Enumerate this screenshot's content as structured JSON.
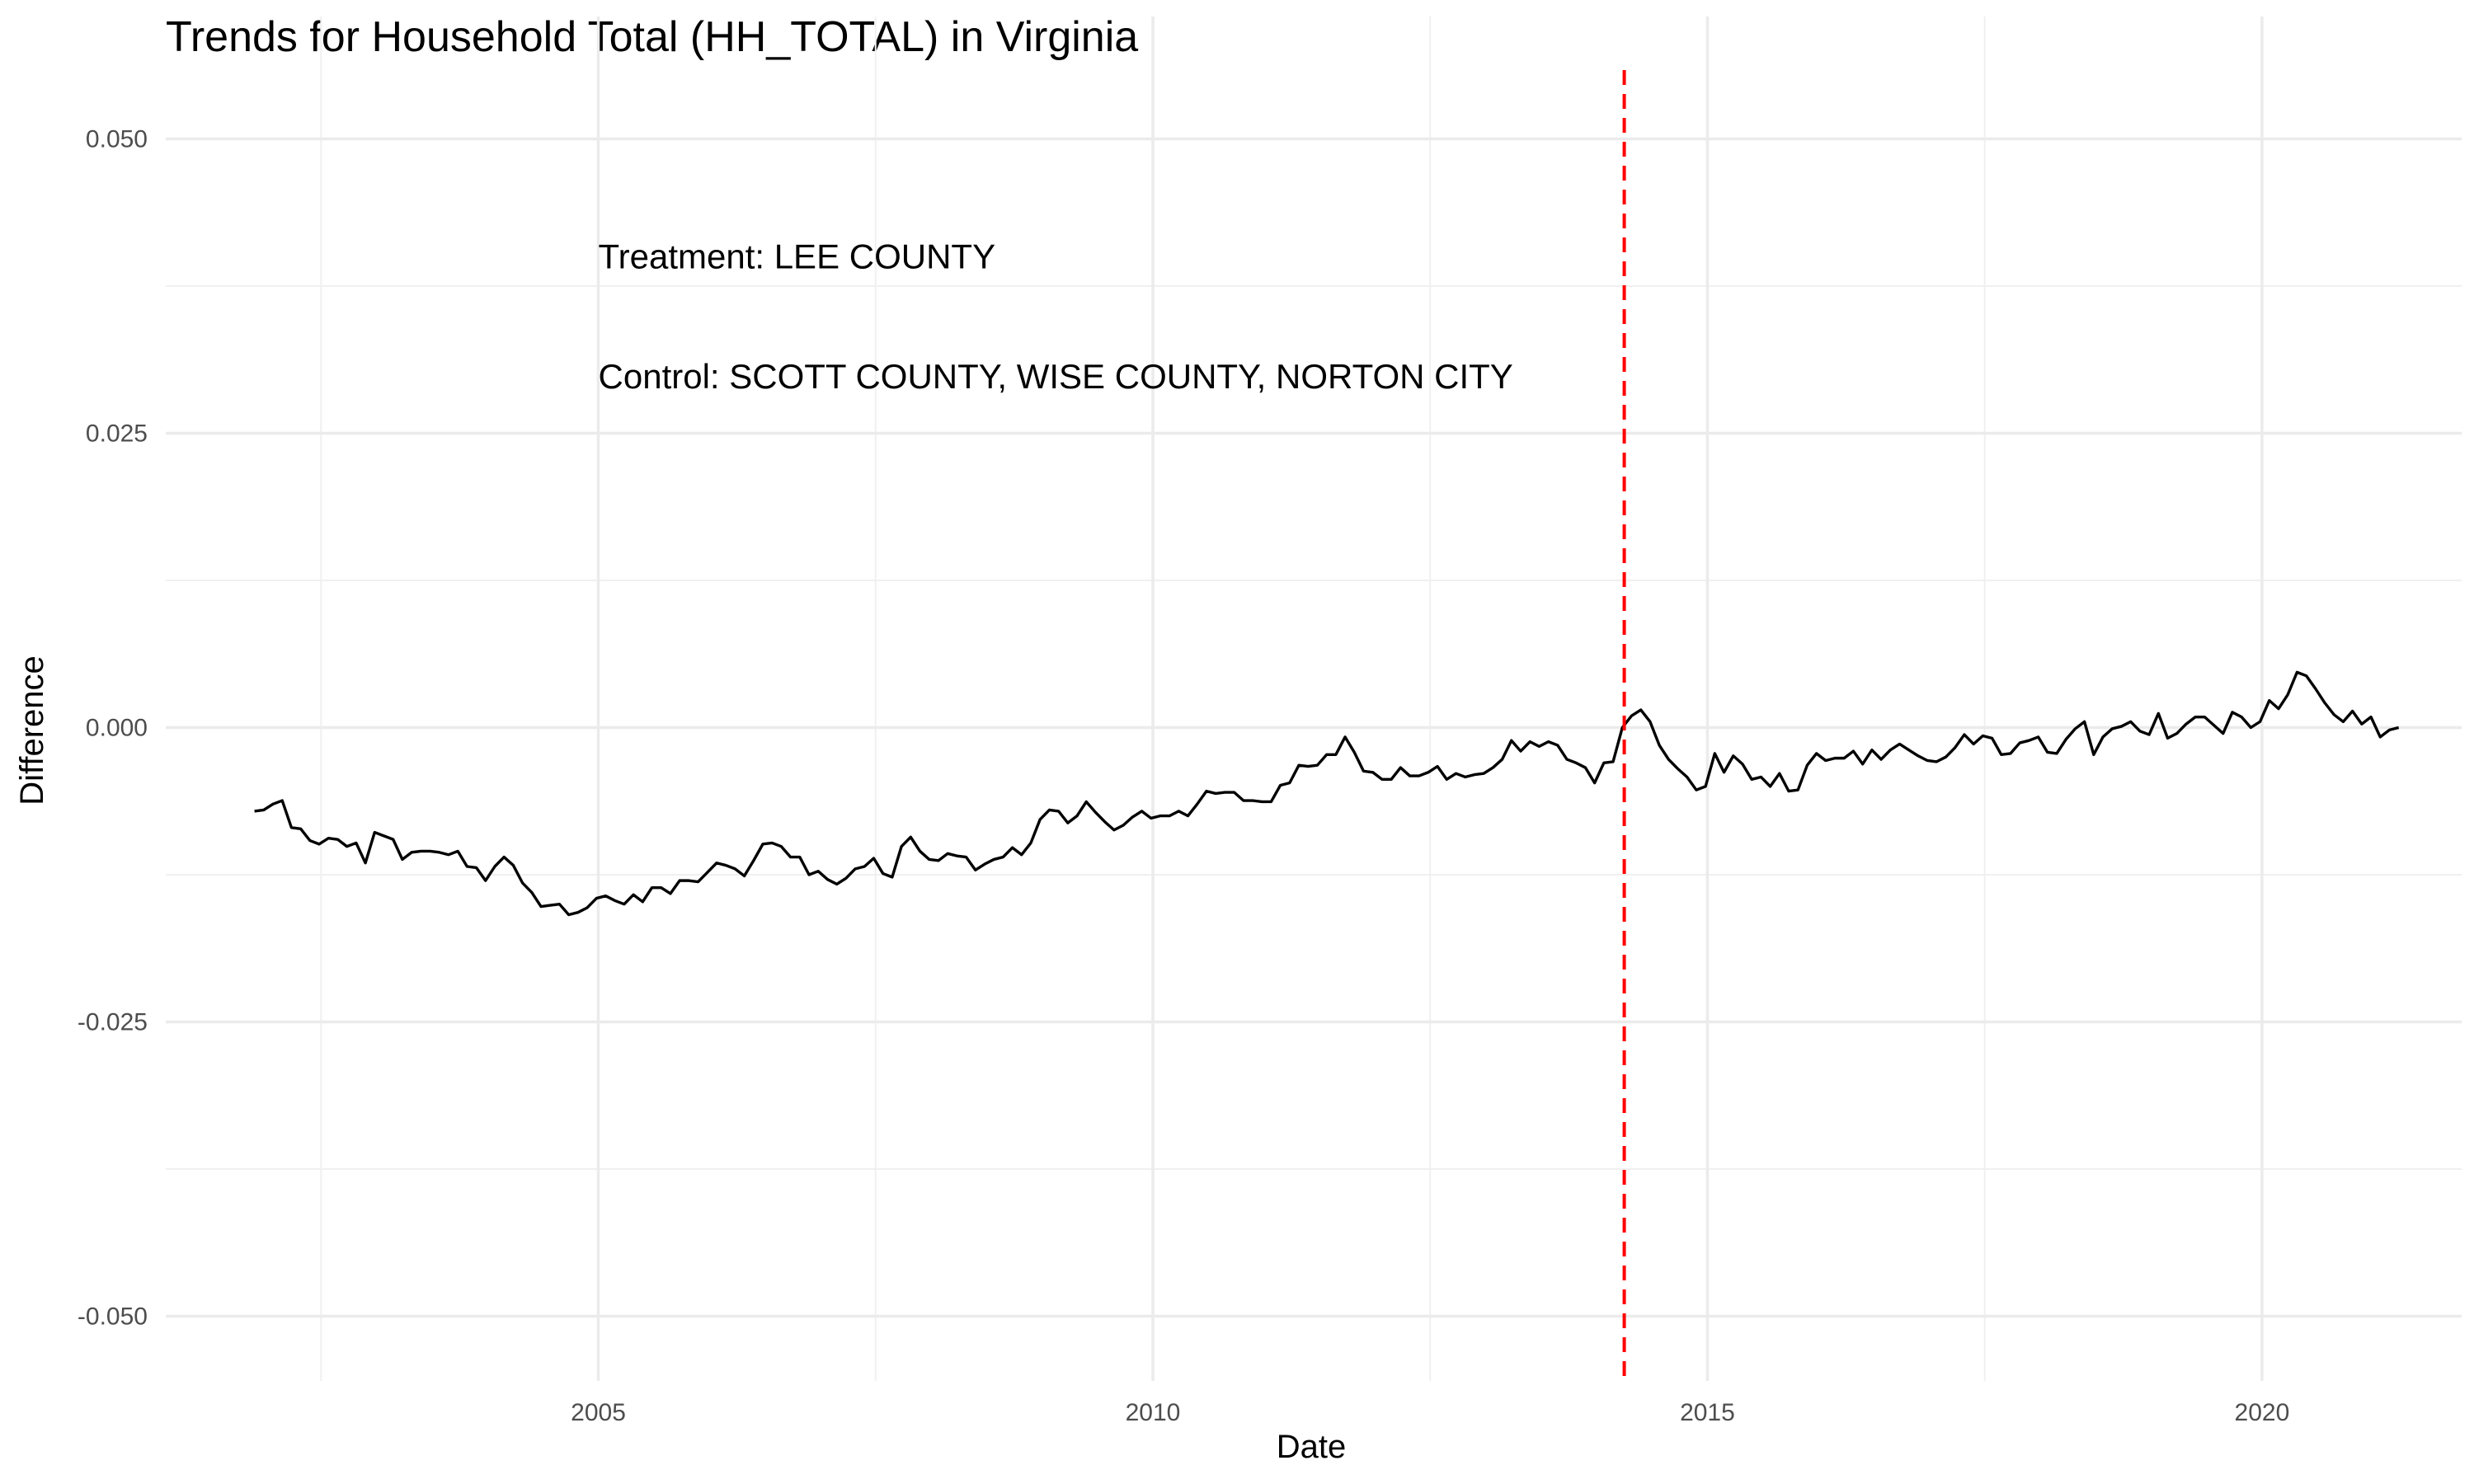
{
  "chart_data": {
    "type": "line",
    "title": "Trends for Household Total (HH_TOTAL) in Virginia",
    "xlabel": "Date",
    "ylabel": "Difference",
    "xlim": [
      2001.1,
      2021.8
    ],
    "ylim": [
      -0.0555,
      0.0555
    ],
    "x_ticks": [
      2005,
      2010,
      2015,
      2020
    ],
    "x_tick_labels": [
      "2005",
      "2010",
      "2015",
      "2020"
    ],
    "y_ticks": [
      -0.05,
      -0.025,
      0.0,
      0.025,
      0.05
    ],
    "y_tick_labels": [
      "-0.050",
      "-0.025",
      "0.000",
      "0.025",
      "0.050"
    ],
    "grid": true,
    "legend": "none",
    "annotations": [
      {
        "text": "Treatment: LEE COUNTY",
        "x": 2005.0,
        "y": 0.04
      },
      {
        "text": "Control: SCOTT COUNTY, WISE COUNTY, NORTON CITY",
        "x": 2005.0,
        "y": 0.0298
      }
    ],
    "vline": {
      "x": 2014.25,
      "color": "#ff0000",
      "style": "dashed"
    },
    "series": [
      {
        "color": "#000000",
        "x_start": 2001.9,
        "x_step": 0.08333,
        "values": [
          -0.0071,
          -0.007,
          -0.0065,
          -0.0062,
          -0.0085,
          -0.0086,
          -0.0096,
          -0.0099,
          -0.0094,
          -0.0095,
          -0.0101,
          -0.0098,
          -0.0115,
          -0.0089,
          -0.0092,
          -0.0095,
          -0.0112,
          -0.0106,
          -0.0105,
          -0.0105,
          -0.0106,
          -0.0108,
          -0.0105,
          -0.0118,
          -0.0119,
          -0.013,
          -0.0118,
          -0.011,
          -0.0117,
          -0.0132,
          -0.014,
          -0.0152,
          -0.0151,
          -0.015,
          -0.0159,
          -0.0157,
          -0.0153,
          -0.0145,
          -0.0143,
          -0.0147,
          -0.015,
          -0.0142,
          -0.0148,
          -0.0136,
          -0.0136,
          -0.0141,
          -0.013,
          -0.013,
          -0.0131,
          -0.0123,
          -0.0115,
          -0.0117,
          -0.012,
          -0.0126,
          -0.0113,
          -0.0099,
          -0.0098,
          -0.0101,
          -0.011,
          -0.011,
          -0.0125,
          -0.0122,
          -0.0129,
          -0.0133,
          -0.0128,
          -0.012,
          -0.0118,
          -0.0111,
          -0.0124,
          -0.0127,
          -0.0101,
          -0.0093,
          -0.0105,
          -0.0112,
          -0.0113,
          -0.0107,
          -0.0109,
          -0.011,
          -0.0121,
          -0.0116,
          -0.0112,
          -0.011,
          -0.0102,
          -0.0108,
          -0.0098,
          -0.0078,
          -0.007,
          -0.0071,
          -0.0081,
          -0.0075,
          -0.0063,
          -0.0072,
          -0.008,
          -0.0087,
          -0.0083,
          -0.0076,
          -0.0071,
          -0.0077,
          -0.0075,
          -0.0075,
          -0.0071,
          -0.0075,
          -0.0065,
          -0.0054,
          -0.0056,
          -0.0055,
          -0.0055,
          -0.0062,
          -0.0062,
          -0.0063,
          -0.0063,
          -0.0049,
          -0.0047,
          -0.0032,
          -0.0033,
          -0.0032,
          -0.0023,
          -0.0023,
          -0.0008,
          -0.0021,
          -0.0037,
          -0.0038,
          -0.0044,
          -0.0044,
          -0.0034,
          -0.0041,
          -0.0041,
          -0.0038,
          -0.0033,
          -0.0044,
          -0.0039,
          -0.0042,
          -0.004,
          -0.0039,
          -0.0034,
          -0.0027,
          -0.0011,
          -0.002,
          -0.0012,
          -0.0016,
          -0.0012,
          -0.0015,
          -0.0027,
          -0.003,
          -0.0034,
          -0.0047,
          -0.003,
          -0.0029,
          0.0,
          0.001,
          0.0015,
          0.0005,
          -0.0015,
          -0.0027,
          -0.0035,
          -0.0042,
          -0.0053,
          -0.005,
          -0.0022,
          -0.0038,
          -0.0024,
          -0.0031,
          -0.0044,
          -0.0042,
          -0.005,
          -0.0039,
          -0.0054,
          -0.0053,
          -0.0032,
          -0.0022,
          -0.0028,
          -0.0026,
          -0.0026,
          -0.002,
          -0.0031,
          -0.0019,
          -0.0027,
          -0.0019,
          -0.0014,
          -0.0019,
          -0.0024,
          -0.0028,
          -0.0029,
          -0.0025,
          -0.0017,
          -0.0006,
          -0.0014,
          -0.0007,
          -0.0009,
          -0.0023,
          -0.0022,
          -0.0013,
          -0.0011,
          -0.0008,
          -0.0021,
          -0.0022,
          -0.001,
          -0.0001,
          0.0005,
          -0.0023,
          -0.0008,
          -0.0001,
          0.0001,
          0.0005,
          -0.0003,
          -0.0006,
          0.0012,
          -0.0009,
          -0.0005,
          0.0003,
          0.0009,
          0.0009,
          0.0002,
          -0.0005,
          0.0013,
          0.0009,
          0.0,
          0.0005,
          0.0023,
          0.0016,
          0.0028,
          0.0047,
          0.0044,
          0.0033,
          0.0021,
          0.0011,
          0.0005,
          0.0014,
          0.0003,
          0.0009,
          -0.0008,
          -0.0002,
          0.0
        ]
      }
    ]
  }
}
